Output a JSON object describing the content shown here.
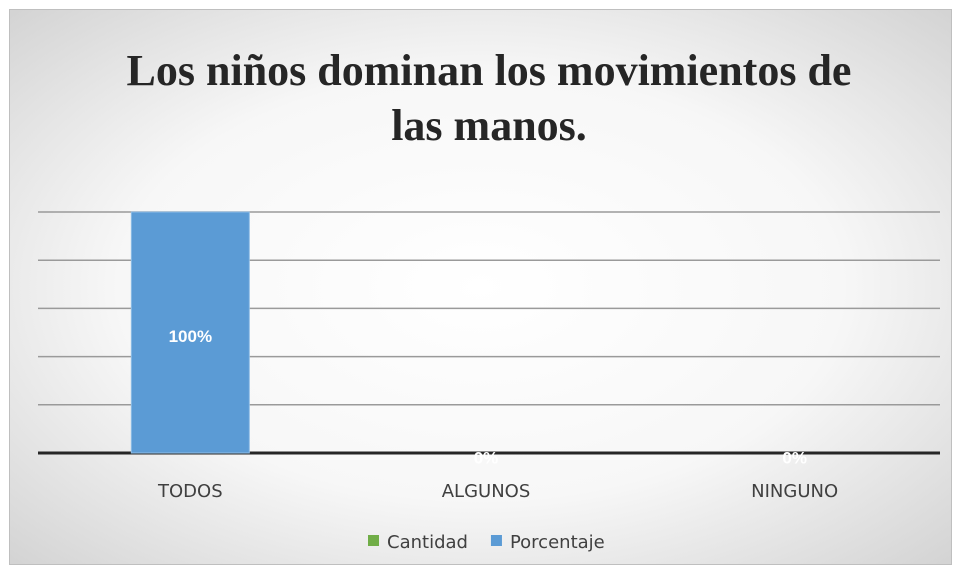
{
  "chart_data": {
    "type": "bar",
    "title": [
      "Los niños dominan los movimientos de",
      "las manos."
    ],
    "categories": [
      "TODOS",
      "ALGUNOS",
      "NINGUNO"
    ],
    "series": [
      {
        "name": "Cantidad",
        "color": "#70ad47",
        "values": [
          null,
          null,
          null
        ]
      },
      {
        "name": "Porcentaje",
        "color": "#5b9bd5",
        "values": [
          100,
          0,
          0
        ],
        "value_labels": [
          "100%",
          "0%",
          "0%"
        ]
      }
    ],
    "ylim": [
      0,
      100
    ],
    "yticks": [
      0,
      20,
      40,
      60,
      80,
      100
    ],
    "grid": true,
    "legend": "bottom"
  }
}
